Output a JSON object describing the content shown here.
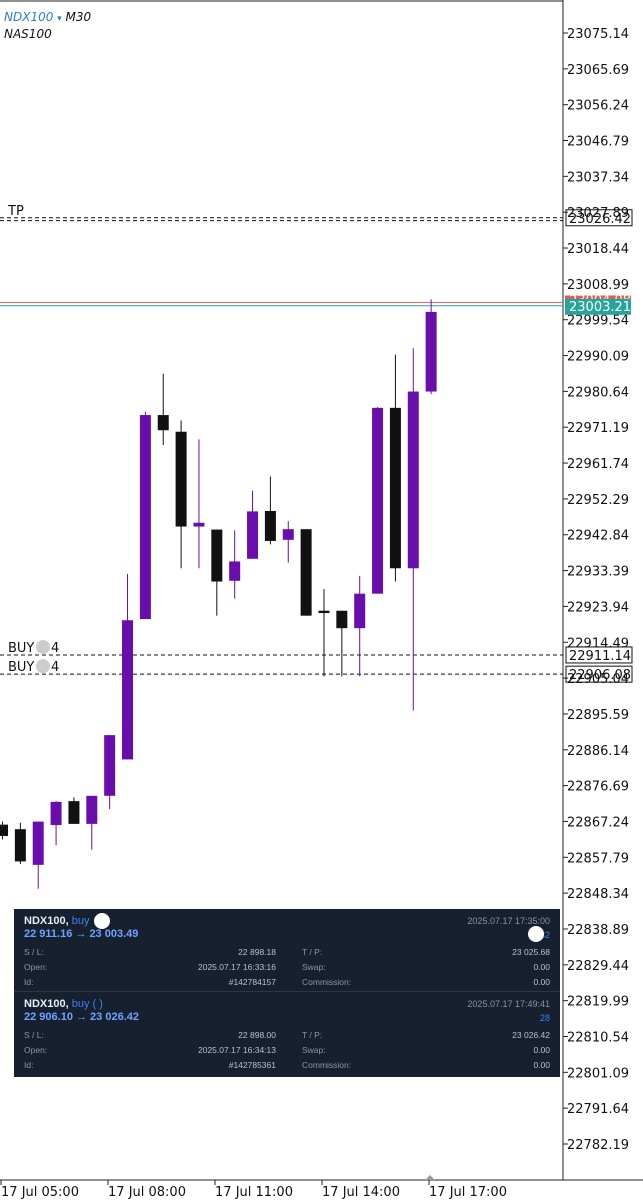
{
  "header": {
    "symbol": "NDX100",
    "arrow": "▾",
    "timeframe": "M30",
    "description": "NAS100"
  },
  "colors": {
    "bull": "#6a0dad",
    "bear": "#111111",
    "ask_line": "#e06666",
    "bid_line": "#26a69a",
    "ask_badge": "#e85a4f",
    "bid_badge": "#26a69a",
    "panel_bg": "#17202f"
  },
  "chart_data": {
    "type": "candlestick",
    "ylim": [
      22777.5,
      23080.0
    ],
    "y_ticks": [
      "23075.14",
      "23065.69",
      "23056.24",
      "23046.79",
      "23037.34",
      "23027.89",
      "23018.44",
      "23008.99",
      "22999.54",
      "22990.09",
      "22980.64",
      "22971.19",
      "22961.74",
      "22952.29",
      "22942.84",
      "22933.39",
      "22923.94",
      "22914.49",
      "22905.04",
      "22895.59",
      "22886.14",
      "22876.69",
      "22867.24",
      "22857.79",
      "22848.34",
      "22838.89",
      "22829.44",
      "22819.99",
      "22810.54",
      "22801.09",
      "22791.64",
      "22782.19"
    ],
    "x_ticks": [
      "17 Jul 05:00",
      "17 Jul 08:00",
      "17 Jul 11:00",
      "17 Jul 14:00",
      "17 Jul 17:00"
    ],
    "candles": [
      {
        "o": 22866.4,
        "h": 22867.2,
        "l": 22862.5,
        "c": 22863.4
      },
      {
        "o": 22865.2,
        "h": 22866.9,
        "l": 22856.0,
        "c": 22856.7
      },
      {
        "o": 22855.8,
        "h": 22867.2,
        "l": 22849.5,
        "c": 22867.2
      },
      {
        "o": 22866.3,
        "h": 22872.6,
        "l": 22861.0,
        "c": 22872.4
      },
      {
        "o": 22872.6,
        "h": 22873.6,
        "l": 22866.6,
        "c": 22866.6
      },
      {
        "o": 22866.6,
        "h": 22874.0,
        "l": 22859.8,
        "c": 22874.0
      },
      {
        "o": 22874.0,
        "h": 22890.0,
        "l": 22870.5,
        "c": 22890.0
      },
      {
        "o": 22883.6,
        "h": 22932.5,
        "l": 22883.6,
        "c": 22920.3
      },
      {
        "o": 22920.6,
        "h": 22975.3,
        "l": 22920.6,
        "c": 22974.4
      },
      {
        "o": 22974.4,
        "h": 22985.3,
        "l": 22966.5,
        "c": 22970.4
      },
      {
        "o": 22970.0,
        "h": 22973.0,
        "l": 22934.0,
        "c": 22945.0
      },
      {
        "o": 22945.0,
        "h": 22968.0,
        "l": 22934.0,
        "c": 22946.0
      },
      {
        "o": 22944.2,
        "h": 22944.2,
        "l": 22921.5,
        "c": 22930.5
      },
      {
        "o": 22930.7,
        "h": 22944.0,
        "l": 22926.0,
        "c": 22935.8
      },
      {
        "o": 22936.5,
        "h": 22954.5,
        "l": 22936.5,
        "c": 22949.0
      },
      {
        "o": 22949.1,
        "h": 22958.2,
        "l": 22940.3,
        "c": 22941.2
      },
      {
        "o": 22941.5,
        "h": 22946.4,
        "l": 22935.5,
        "c": 22944.3
      },
      {
        "o": 22944.3,
        "h": 22944.3,
        "l": 22921.5,
        "c": 22921.5
      },
      {
        "o": 22922.8,
        "h": 22928.5,
        "l": 22905.5,
        "c": 22922.2
      },
      {
        "o": 22922.8,
        "h": 22922.8,
        "l": 22905.5,
        "c": 22918.2
      },
      {
        "o": 22918.2,
        "h": 22932.0,
        "l": 22905.5,
        "c": 22927.3
      },
      {
        "o": 22927.3,
        "h": 22976.5,
        "l": 22927.3,
        "c": 22976.3
      },
      {
        "o": 22976.3,
        "h": 22990.3,
        "l": 22930.5,
        "c": 22934.0
      },
      {
        "o": 22934.0,
        "h": 22992.0,
        "l": 22896.5,
        "c": 22980.6
      },
      {
        "o": 22980.6,
        "h": 23004.9,
        "l": 22979.9,
        "c": 23001.6
      }
    ],
    "levels": [
      {
        "name": "TP",
        "label": "TP",
        "price": 23026.42,
        "price_text": "23026.42",
        "style": "dashed"
      },
      {
        "name": "TP 2",
        "label": "",
        "price": 23025.68,
        "price_text": "",
        "style": "dashed"
      },
      {
        "name": "BUY 1",
        "label": "BUY",
        "suffix": "4",
        "price": 22911.14,
        "price_text": "22911.14",
        "style": "dashed"
      },
      {
        "name": "BUY 2",
        "label": "BUY",
        "suffix": "4",
        "price": 22906.08,
        "price_text": "22906.08",
        "style": "dashed"
      }
    ],
    "ask": {
      "price": 23004.08,
      "text": "23004.08"
    },
    "bid": {
      "price": 23003.21,
      "text": "23003.21"
    }
  },
  "positions": [
    {
      "symbol": "NDX100,",
      "type": "buy",
      "prices": "22 911.16 → 23 003.49",
      "time": "2025.07.17 17:35:00",
      "profit": "32",
      "sl_label": "S / L:",
      "sl": "22 898.18",
      "tp_label": "T / P:",
      "tp": "23 025.68",
      "open_label": "Open:",
      "open": "2025.07.17 16:33:16",
      "swap_label": "Swap:",
      "swap": "0.00",
      "id_label": "Id:",
      "id": "#142784157",
      "comm_label": "Commission:",
      "comm": "0.00"
    },
    {
      "symbol": "NDX100,",
      "type": "buy",
      "prices": "22 906.10 → 23 026.42",
      "time": "2025.07.17 17:49:41",
      "profit": "28",
      "sl_label": "S / L:",
      "sl": "22 898.00",
      "tp_label": "T / P:",
      "tp": "23 026.42",
      "open_label": "Open:",
      "open": "2025.07.17 16:34:13",
      "swap_label": "Swap:",
      "swap": "0.00",
      "id_label": "Id:",
      "id": "#142785361",
      "comm_label": "Commission:",
      "comm": "0.00"
    }
  ]
}
